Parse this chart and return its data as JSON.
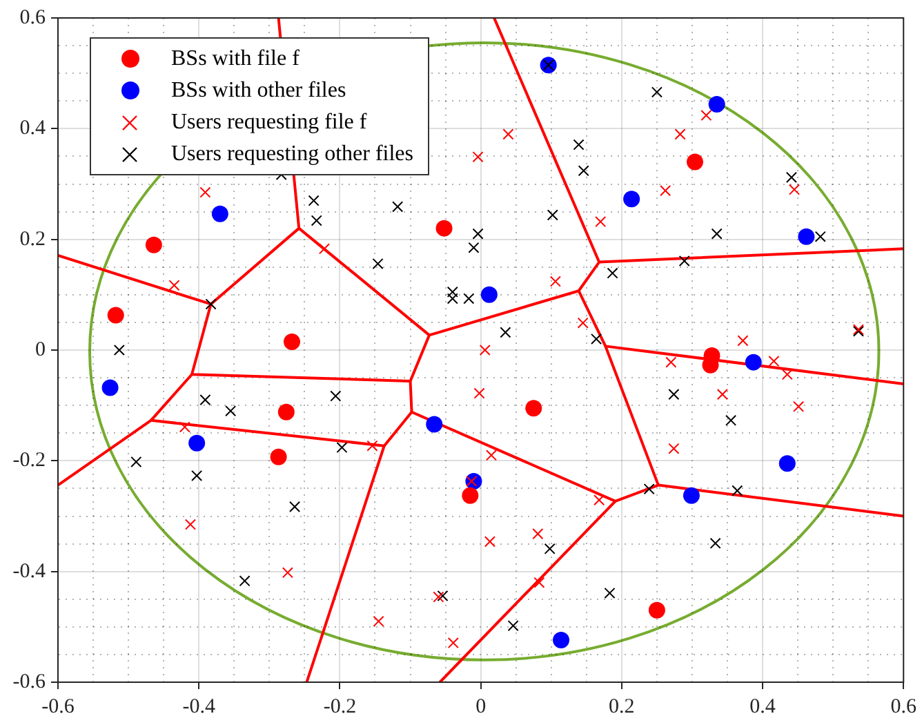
{
  "chart_data": {
    "type": "scatter",
    "xlim": [
      -0.6,
      0.6
    ],
    "ylim": [
      -0.6,
      0.6
    ],
    "xticks": [
      -0.6,
      {
        "value": -0.55,
        "label": null
      },
      {
        "value": -0.5,
        "label": null
      },
      {
        "value": -0.45,
        "label": null
      },
      -0.4,
      {
        "value": -0.35,
        "label": null
      },
      {
        "value": -0.3,
        "label": null
      },
      {
        "value": -0.25,
        "label": null
      },
      -0.2,
      {
        "value": -0.15,
        "label": null
      },
      {
        "value": -0.1,
        "label": null
      },
      {
        "value": -0.05,
        "label": null
      },
      0,
      {
        "value": 0.05,
        "label": null
      },
      {
        "value": 0.1,
        "label": null
      },
      {
        "value": 0.15,
        "label": null
      },
      0.2,
      {
        "value": 0.25,
        "label": null
      },
      {
        "value": 0.3,
        "label": null
      },
      {
        "value": 0.35,
        "label": null
      },
      0.4,
      {
        "value": 0.45,
        "label": null
      },
      {
        "value": 0.5,
        "label": null
      },
      {
        "value": 0.55,
        "label": null
      },
      0.6
    ],
    "yticks": [
      -0.6,
      {
        "value": -0.55,
        "label": null
      },
      {
        "value": -0.5,
        "label": null
      },
      {
        "value": -0.45,
        "label": null
      },
      -0.4,
      {
        "value": -0.35,
        "label": null
      },
      {
        "value": -0.3,
        "label": null
      },
      {
        "value": -0.25,
        "label": null
      },
      -0.2,
      {
        "value": -0.15,
        "label": null
      },
      {
        "value": -0.1,
        "label": null
      },
      {
        "value": -0.05,
        "label": null
      },
      0,
      {
        "value": 0.05,
        "label": null
      },
      {
        "value": 0.1,
        "label": null
      },
      {
        "value": 0.15,
        "label": null
      },
      0.2,
      {
        "value": 0.25,
        "label": null
      },
      {
        "value": 0.3,
        "label": null
      },
      {
        "value": 0.35,
        "label": null
      },
      0.4,
      {
        "value": 0.45,
        "label": null
      },
      {
        "value": 0.5,
        "label": null
      },
      {
        "value": 0.55,
        "label": null
      },
      0.6
    ],
    "grid": true,
    "legend": "top left",
    "series": [
      {
        "name": "BSs with file f",
        "marker": "circle",
        "color": "#ff0000",
        "x": [
          -0.464,
          -0.518,
          -0.268,
          -0.276,
          -0.287,
          -0.052,
          0.075,
          -0.015,
          0.304,
          0.328,
          0.326,
          0.25
        ],
        "values": [
          0.19,
          0.063,
          0.015,
          -0.112,
          -0.193,
          0.22,
          -0.105,
          -0.263,
          0.34,
          -0.01,
          -0.027,
          -0.47
        ]
      },
      {
        "name": "BSs with other files",
        "marker": "circle",
        "color": "#0000ff",
        "x": [
          -0.37,
          0.096,
          0.335,
          0.214,
          0.462,
          0.012,
          -0.526,
          -0.403,
          -0.066,
          -0.01,
          0.114,
          0.387,
          0.435,
          0.299
        ],
        "values": [
          0.246,
          0.515,
          0.444,
          0.273,
          0.205,
          0.1,
          -0.068,
          -0.168,
          -0.134,
          -0.237,
          -0.524,
          -0.022,
          -0.205,
          -0.263
        ]
      },
      {
        "name": "Users requesting file f",
        "marker": "cross",
        "color": "#ff0000",
        "x": [
          -0.391,
          -0.435,
          -0.222,
          0.039,
          -0.004,
          0.17,
          0.106,
          0.145,
          0.006,
          0.32,
          0.283,
          0.262,
          0.445,
          0.372,
          0.536,
          0.27,
          0.416,
          0.435,
          0.343,
          0.451,
          0.274,
          -0.002,
          0.015,
          -0.154,
          -0.42,
          -0.013,
          0.168,
          0.081,
          0.013,
          0.083,
          -0.06,
          -0.145,
          -0.039,
          -0.412,
          -0.274
        ],
        "values": [
          0.285,
          0.117,
          0.183,
          0.39,
          0.349,
          0.232,
          0.124,
          0.049,
          0.0,
          0.424,
          0.39,
          0.288,
          0.29,
          0.017,
          0.037,
          -0.022,
          -0.02,
          -0.044,
          -0.08,
          -0.102,
          -0.178,
          -0.078,
          -0.19,
          -0.173,
          -0.139,
          -0.237,
          -0.271,
          -0.332,
          -0.346,
          -0.42,
          -0.446,
          -0.49,
          -0.529,
          -0.315,
          -0.402
        ]
      },
      {
        "name": "Users requesting other files",
        "marker": "cross",
        "color": "#000000",
        "x": [
          -0.283,
          -0.237,
          -0.233,
          -0.383,
          -0.513,
          -0.118,
          -0.146,
          -0.004,
          -0.01,
          -0.04,
          -0.04,
          -0.017,
          0.035,
          0.096,
          0.139,
          0.146,
          0.102,
          0.187,
          0.164,
          0.25,
          0.441,
          0.335,
          0.482,
          0.289,
          0.536,
          -0.391,
          -0.355,
          -0.206,
          -0.197,
          -0.489,
          -0.403,
          -0.264,
          -0.335,
          0.098,
          -0.054,
          0.183,
          0.046,
          0.274,
          0.355,
          0.239,
          0.364,
          0.333
        ],
        "values": [
          0.317,
          0.27,
          0.234,
          0.083,
          0.0,
          0.259,
          0.156,
          0.21,
          0.185,
          0.105,
          0.093,
          0.093,
          0.032,
          0.515,
          0.371,
          0.324,
          0.244,
          0.139,
          0.02,
          0.466,
          0.312,
          0.21,
          0.205,
          0.161,
          0.034,
          -0.09,
          -0.11,
          -0.083,
          -0.176,
          -0.202,
          -0.227,
          -0.283,
          -0.417,
          -0.359,
          -0.444,
          -0.439,
          -0.498,
          -0.08,
          -0.127,
          -0.251,
          -0.254,
          -0.349
        ]
      },
      {
        "type": "line",
        "marker": "none",
        "color": "#ff0000",
        "x": [
          -0.287,
          -0.258,
          -0.383,
          -0.6
        ],
        "values": [
          0.6,
          0.22,
          0.083,
          0.171
        ]
      },
      {
        "type": "line",
        "marker": "none",
        "color": "#ff0000",
        "x": [
          -0.258,
          -0.073,
          0.139,
          0.168,
          0.019
        ],
        "values": [
          0.22,
          0.027,
          0.107,
          0.159,
          0.6
        ]
      },
      {
        "type": "line",
        "marker": "none",
        "color": "#ff0000",
        "x": [
          0.168,
          0.6
        ],
        "values": [
          0.159,
          0.183
        ]
      },
      {
        "type": "line",
        "marker": "none",
        "color": "#ff0000",
        "x": [
          0.139,
          0.177,
          0.6
        ],
        "values": [
          0.107,
          0.007,
          -0.061
        ]
      },
      {
        "type": "line",
        "marker": "none",
        "color": "#ff0000",
        "x": [
          0.177,
          0.252,
          0.6
        ],
        "values": [
          0.007,
          -0.244,
          -0.3
        ]
      },
      {
        "type": "line",
        "marker": "none",
        "color": "#ff0000",
        "x": [
          0.252,
          0.191,
          -0.058
        ],
        "values": [
          -0.244,
          -0.273,
          -0.6
        ]
      },
      {
        "type": "line",
        "marker": "none",
        "color": "#ff0000",
        "x": [
          0.191,
          -0.098,
          -0.1,
          -0.073
        ],
        "values": [
          -0.273,
          -0.112,
          -0.056,
          0.027
        ]
      },
      {
        "type": "line",
        "marker": "none",
        "color": "#ff0000",
        "x": [
          -0.1,
          -0.41,
          -0.383
        ],
        "values": [
          -0.056,
          -0.044,
          0.083
        ]
      },
      {
        "type": "line",
        "marker": "none",
        "color": "#ff0000",
        "x": [
          -0.41,
          -0.468,
          -0.6
        ],
        "values": [
          -0.044,
          -0.127,
          -0.244
        ]
      },
      {
        "type": "line",
        "marker": "none",
        "color": "#ff0000",
        "x": [
          -0.468,
          -0.137,
          -0.247
        ],
        "values": [
          -0.127,
          -0.173,
          -0.6
        ]
      },
      {
        "type": "line",
        "marker": "none",
        "color": "#ff0000",
        "x": [
          -0.137,
          -0.098
        ],
        "values": [
          -0.173,
          -0.112
        ]
      }
    ]
  }
}
